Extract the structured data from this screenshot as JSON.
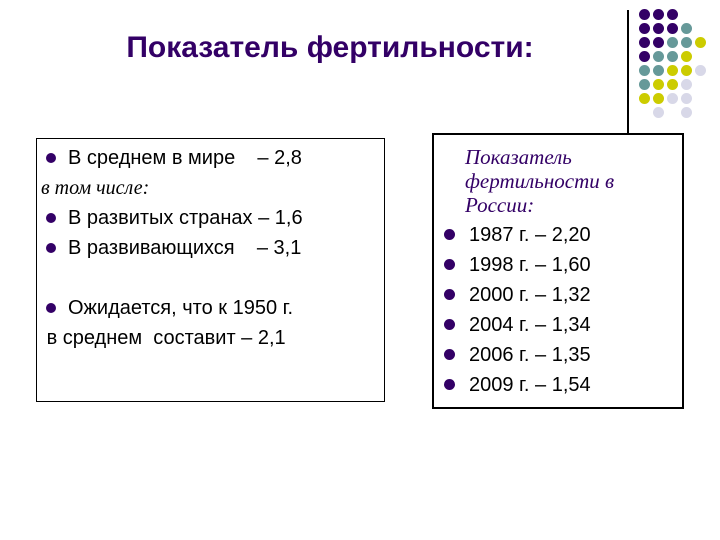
{
  "slide": {
    "title": "Показатель фертильности:",
    "colors": {
      "title": "#330066",
      "text": "#000000",
      "bullet": "#330066",
      "indigo": "#330066",
      "teal": "#669999",
      "yellow": "#CCCC00",
      "lavender": "#D8D8E8"
    }
  },
  "left_box": {
    "lines": [
      {
        "bullet": true,
        "italic": false,
        "text": "В среднем в мире    – 2,8"
      },
      {
        "bullet": false,
        "italic": true,
        "text": "в том числе:"
      },
      {
        "bullet": true,
        "italic": false,
        "text": "В развитых странах – 1,6"
      },
      {
        "bullet": true,
        "italic": false,
        "text": "В развивающихся    – 3,1"
      },
      {
        "bullet": false,
        "italic": false,
        "text": ""
      },
      {
        "bullet": true,
        "italic": false,
        "text": "Ожидается, что к 1950 г."
      },
      {
        "bullet": false,
        "italic": false,
        "text": " в среднем  составит – 2,1"
      }
    ]
  },
  "right_box": {
    "heading_lines": [
      "Показатель",
      "фертильности в",
      "России:"
    ],
    "items": [
      "1987 г. – 2,20",
      "1998 г. – 1,60",
      "2000 г. – 1,32",
      "2004 г. – 1,34",
      "2006 г. – 1,35",
      "2009 г. – 1,54"
    ]
  },
  "decoration": {
    "dot_rows": [
      [
        "indigo",
        "indigo",
        "indigo",
        null,
        null
      ],
      [
        "indigo",
        "indigo",
        "indigo",
        "teal",
        null
      ],
      [
        "indigo",
        "indigo",
        "teal",
        "teal",
        "yellow"
      ],
      [
        "indigo",
        "teal",
        "teal",
        "yellow",
        null
      ],
      [
        "teal",
        "teal",
        "yellow",
        "yellow",
        "lavender"
      ],
      [
        "teal",
        "yellow",
        "yellow",
        "lavender",
        null
      ],
      [
        "yellow",
        "yellow",
        "lavender",
        "lavender",
        null
      ],
      [
        null,
        "lavender",
        null,
        "lavender",
        null
      ]
    ]
  }
}
